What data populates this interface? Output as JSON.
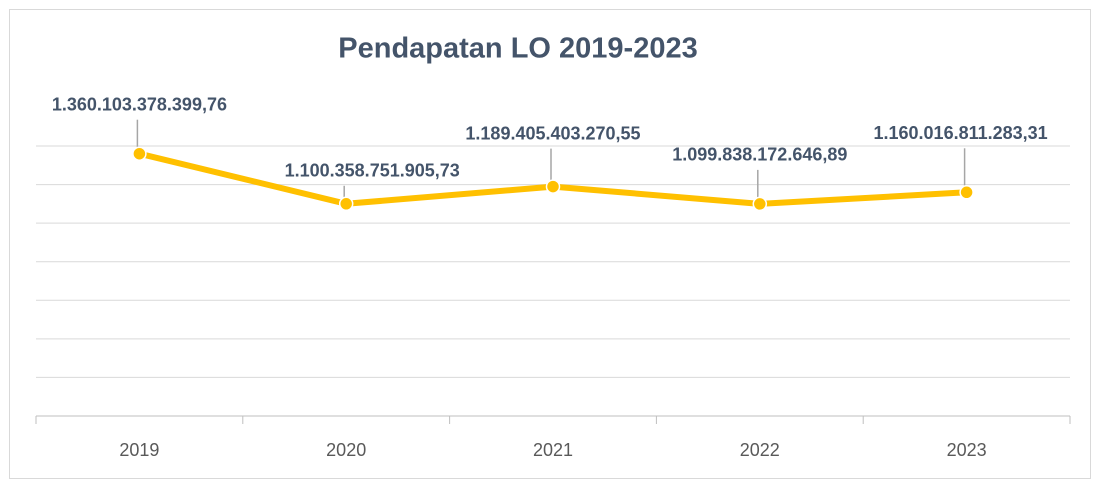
{
  "chart_data": {
    "type": "line",
    "title": "Pendapatan LO 2019-2023",
    "categories": [
      "2019",
      "2020",
      "2021",
      "2022",
      "2023"
    ],
    "series": [
      {
        "name": "Pendapatan LO",
        "color": "#ffc000",
        "values": [
          1360103378399.76,
          1100358751905.73,
          1189405403270.55,
          1099838172646.89,
          1160016811283.31
        ],
        "value_labels": [
          "1.360.103.378.399,76",
          "1.100.358.751.905,73",
          "1.189.405.403.270,55",
          "1.099.838.172.646,89",
          "1.160.016.811.283,31"
        ]
      }
    ],
    "ylim": [
      0,
      1400000000000
    ],
    "yticks": [
      0,
      200000000000,
      400000000000,
      600000000000,
      800000000000,
      1000000000000,
      1200000000000,
      1400000000000
    ],
    "grid": true
  }
}
